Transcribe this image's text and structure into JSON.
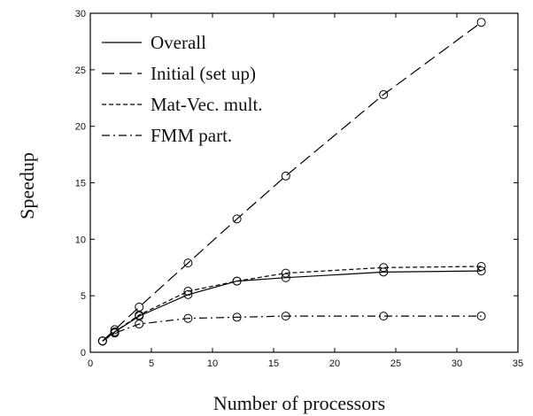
{
  "chart_data": {
    "type": "line",
    "xlabel": "Number of processors",
    "ylabel": "Speedup",
    "xlim": [
      0,
      35
    ],
    "ylim": [
      0,
      30
    ],
    "xticks": [
      0,
      5,
      10,
      15,
      20,
      25,
      30,
      35
    ],
    "yticks": [
      0,
      5,
      10,
      15,
      20,
      25,
      30
    ],
    "grid": false,
    "legend_position": "top-left",
    "marker": "open-circle",
    "series": [
      {
        "name": "Overall",
        "style": "solid",
        "x": [
          1,
          2,
          4,
          8,
          12,
          16,
          24,
          32
        ],
        "y": [
          1.0,
          1.8,
          3.2,
          5.1,
          6.3,
          6.6,
          7.1,
          7.2
        ]
      },
      {
        "name": "Initial (set up)",
        "style": "longdash",
        "x": [
          1,
          2,
          4,
          8,
          12,
          16,
          24,
          32
        ],
        "y": [
          1.0,
          2.0,
          4.0,
          7.9,
          11.8,
          15.6,
          22.8,
          29.2
        ]
      },
      {
        "name": "Mat-Vec. mult.",
        "style": "shortdash",
        "x": [
          1,
          2,
          4,
          8,
          12,
          16,
          24,
          32
        ],
        "y": [
          1.0,
          1.8,
          3.3,
          5.4,
          6.3,
          7.0,
          7.5,
          7.6
        ]
      },
      {
        "name": "FMM part.",
        "style": "dashdot",
        "x": [
          1,
          2,
          4,
          8,
          12,
          16,
          24,
          32
        ],
        "y": [
          1.0,
          1.7,
          2.5,
          3.0,
          3.1,
          3.2,
          3.2,
          3.2
        ]
      }
    ]
  }
}
